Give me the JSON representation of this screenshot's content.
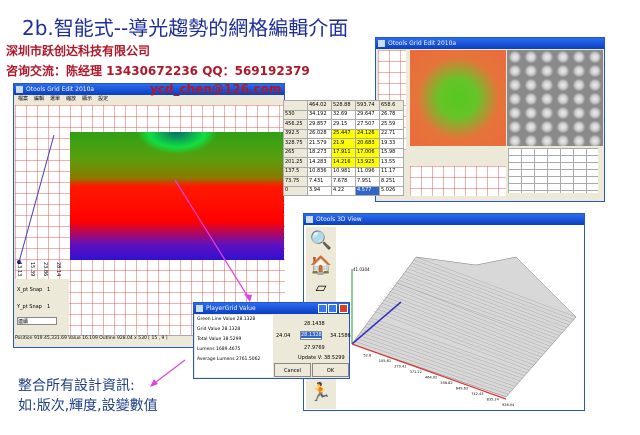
{
  "slide": {
    "title": "2b.智能式--導光趨勢的網格編輯介面",
    "company": "深圳市跃创达科技有限公司",
    "contact": "咨询交流：陈经理  13430672236    QQ：569192379",
    "email": "ycd_chen@126.com",
    "caption_line1": "整合所有設計資訊:",
    "caption_line2": "如:版次,輝度,設變數值"
  },
  "grid_edit": {
    "title": "Otools Grid Edit 2010a",
    "menu": [
      "檔案",
      "編輯",
      "選單",
      "縮放",
      "顯示",
      "設定"
    ],
    "curve_labels": [
      "13.13",
      "15.39",
      "23.86",
      "28.14"
    ],
    "x_snap_label": "X_pt Snap",
    "x_snap_value": "1",
    "y_snap_label": "Y_pt Snap",
    "y_snap_value": "1",
    "mode_select": "連續",
    "status": "Position 919.45,331.69 Value 16.109 Outline 928.04 x 530 [ 15 , 9 ]"
  },
  "value_table": {
    "columns": [
      "464.02",
      "528.88",
      "593.74",
      "658.6"
    ],
    "rows": [
      {
        "label": "530",
        "cells": [
          "34.192",
          "32.69",
          "29.647",
          "26.78"
        ]
      },
      {
        "label": "456.25",
        "cells": [
          "29.857",
          "29.15",
          "27.507",
          "25.59"
        ]
      },
      {
        "label": "392.5",
        "cells": [
          "26.028",
          "25.447",
          "24.126",
          "22.71"
        ],
        "highlight": [
          1,
          2
        ]
      },
      {
        "label": "328.75",
        "cells": [
          "21.579",
          "21.9",
          "20.683",
          "19.33"
        ],
        "highlight": [
          1,
          2
        ]
      },
      {
        "label": "265",
        "cells": [
          "18.273",
          "17.911",
          "17.006",
          "15.98"
        ],
        "highlight": [
          1,
          2
        ]
      },
      {
        "label": "201.25",
        "cells": [
          "14.283",
          "14.216",
          "13.925",
          "13.55"
        ],
        "highlight": [
          1,
          2
        ]
      },
      {
        "label": "137.5",
        "cells": [
          "10.836",
          "10.981",
          "11.096",
          "11.17"
        ]
      },
      {
        "label": "73.75",
        "cells": [
          "7.431",
          "7.678",
          "7.951",
          "8.251"
        ]
      },
      {
        "label": "0",
        "cells": [
          "3.94",
          "4.22",
          "4.577",
          "5.026"
        ],
        "selected": [
          2
        ]
      }
    ],
    "highlight_color": "#ffff00",
    "selected_color": "#3165c8"
  },
  "grid_edit_2": {
    "title": "Otools Grid Edit 2010a"
  },
  "dialog": {
    "title": "PlayerGrid Value",
    "list": [
      "Green Line Value 28.1328",
      "Grid Value 28.1328",
      "Total Value 38.5299",
      "Lumens 1689.4675",
      "Average Lumens 2761.5062"
    ],
    "top": "28.1438",
    "left": "24.04",
    "input": "28.1328",
    "right": "34.1586",
    "bottom": "27.9769",
    "update": "Update V: 38.5299",
    "cancel": "Cancel",
    "ok": "OK"
  },
  "view3d": {
    "title": "Otools 3D View",
    "z_label": "41.0304",
    "x_ticks": [
      "52.6",
      "105.61",
      "270.41",
      "371.22",
      "464.02",
      "556.82",
      "649.63",
      "742.43",
      "835.24",
      "928.04"
    ]
  }
}
